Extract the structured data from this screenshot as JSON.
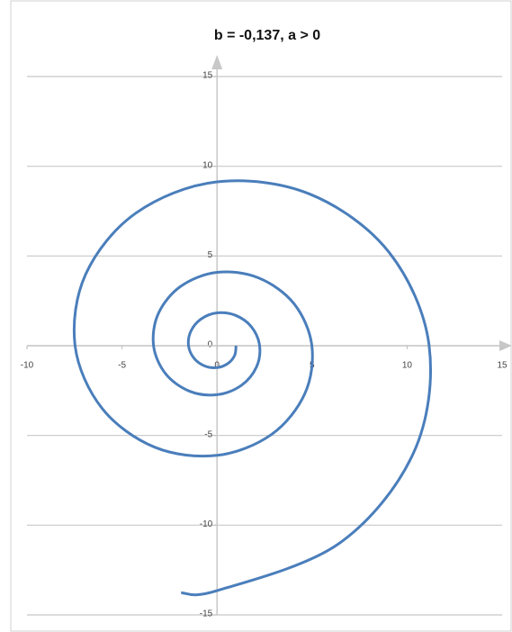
{
  "chart_data": {
    "type": "scatter_line",
    "title": "b = -0,137, a > 0",
    "series": [
      {
        "color": "#4a7ebb",
        "x": [
          1,
          0.93,
          0.57,
          0,
          -0.65,
          -1.21,
          -1.5,
          -1.38,
          -0.85,
          0,
          0.98,
          1.81,
          2.24,
          2.07,
          1.28,
          0,
          -1.46,
          -2.71,
          -3.34,
          -3.09,
          -1.91,
          0,
          2.18,
          4.05,
          4.99,
          4.62,
          2.86,
          0,
          -3.27,
          -6.05,
          -7.47,
          -6.91,
          -4.27,
          0,
          4.88,
          9.04,
          11.16,
          10.34,
          6.38,
          0,
          -1.89
        ],
        "values": [
          0,
          -0.53,
          -0.99,
          -1.22,
          -1.13,
          -0.7,
          0,
          0.8,
          1.48,
          1.83,
          1.69,
          1.05,
          0,
          -1.2,
          -2.21,
          -2.73,
          -2.53,
          -1.56,
          0,
          1.79,
          3.31,
          4.09,
          3.78,
          2.34,
          0,
          -2.67,
          -4.95,
          -6.11,
          -5.66,
          -3.49,
          0,
          3.99,
          7.39,
          9.13,
          8.45,
          5.22,
          0,
          -5.97,
          -11.05,
          -13.65,
          -13.77
        ]
      }
    ],
    "xlim": [
      -10,
      15
    ],
    "xticks": [
      -10,
      -5,
      0,
      5,
      10,
      15
    ],
    "ylim": [
      -15,
      15
    ],
    "yticks": [
      -15,
      -10,
      -5,
      0,
      5,
      10,
      15
    ],
    "grid": true
  }
}
